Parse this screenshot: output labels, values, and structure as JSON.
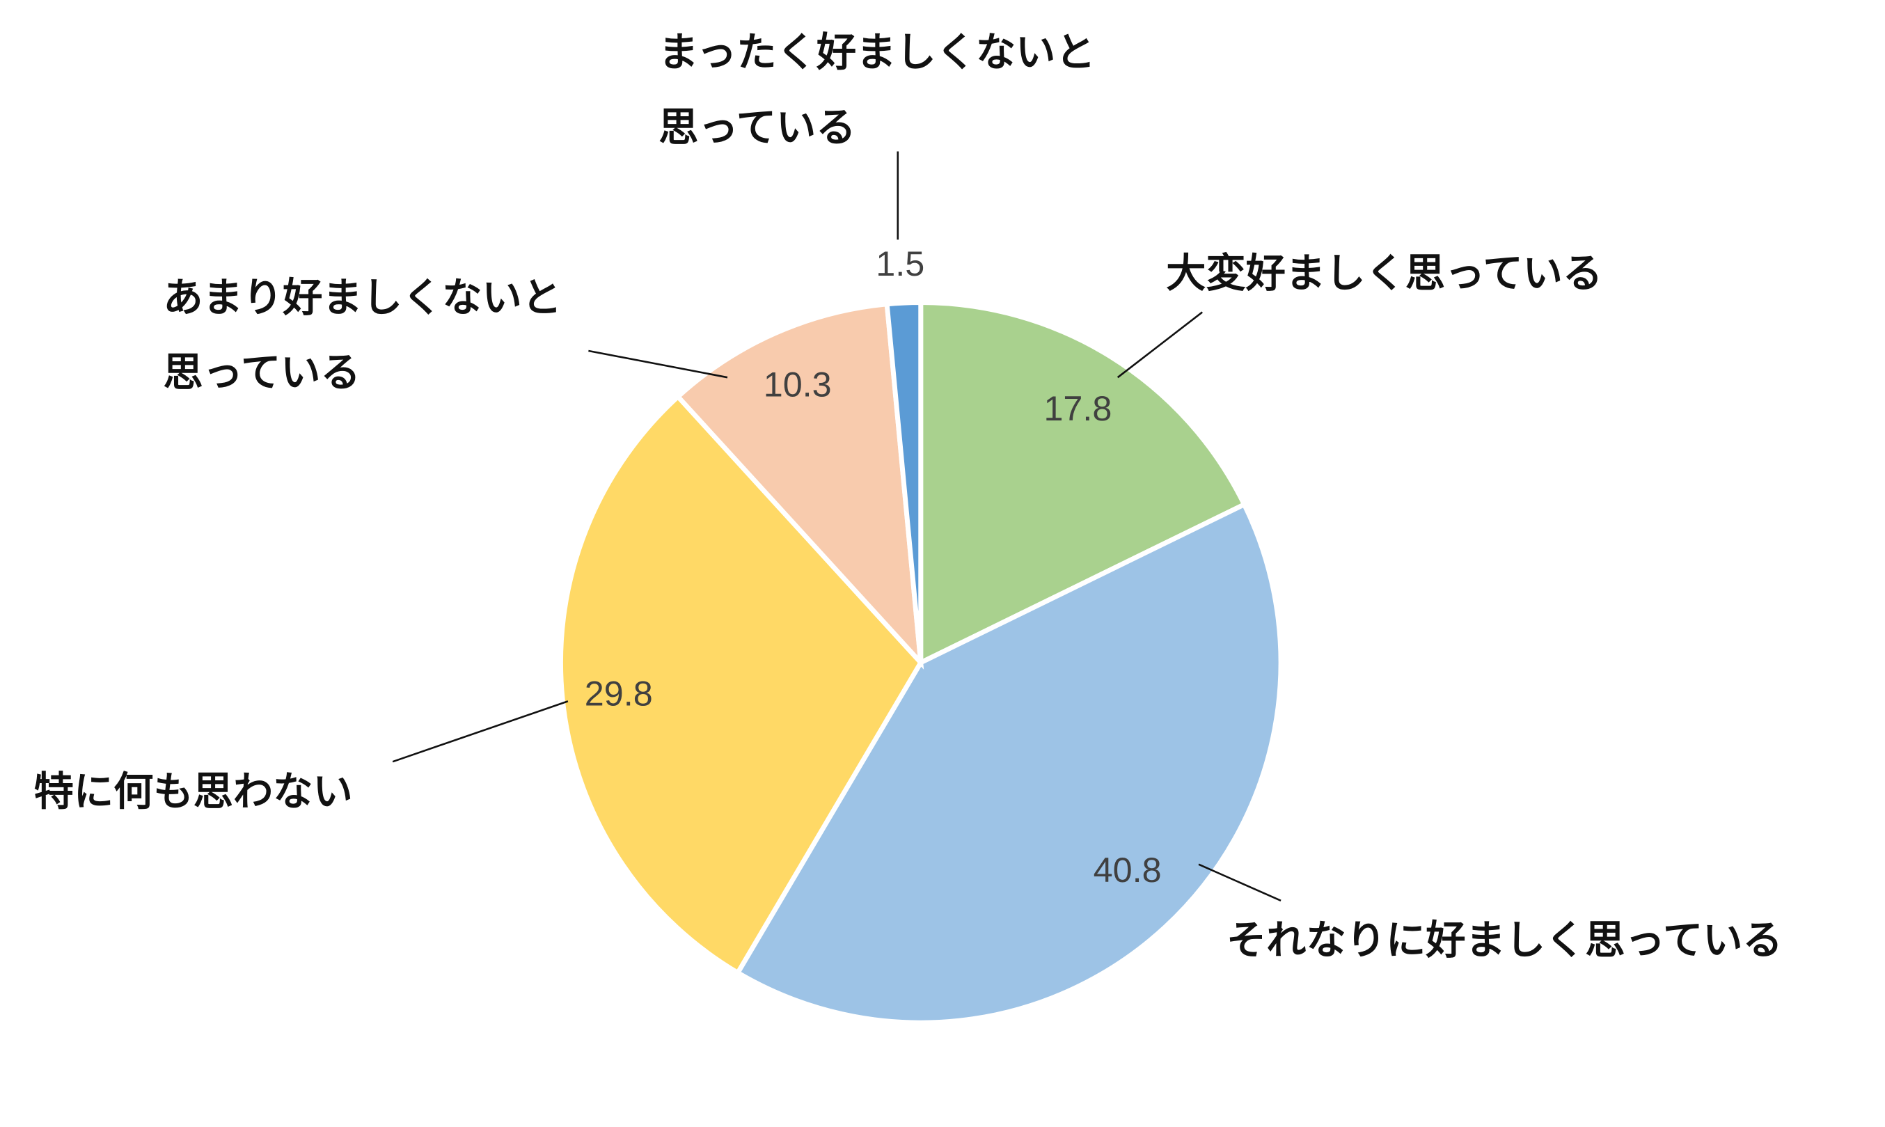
{
  "chart_data": {
    "type": "pie",
    "categories": [
      "大変好ましく思っている",
      "それなりに好ましく思っている",
      "特に何も思わない",
      "あまり好ましくないと思っている",
      "まったく好ましくないと思っている"
    ],
    "values": [
      17.8,
      40.8,
      29.8,
      10.3,
      1.5
    ],
    "colors": [
      "#a9d18e",
      "#9dc3e6",
      "#ffd966",
      "#f8cbad",
      "#5b9bd5"
    ]
  }
}
